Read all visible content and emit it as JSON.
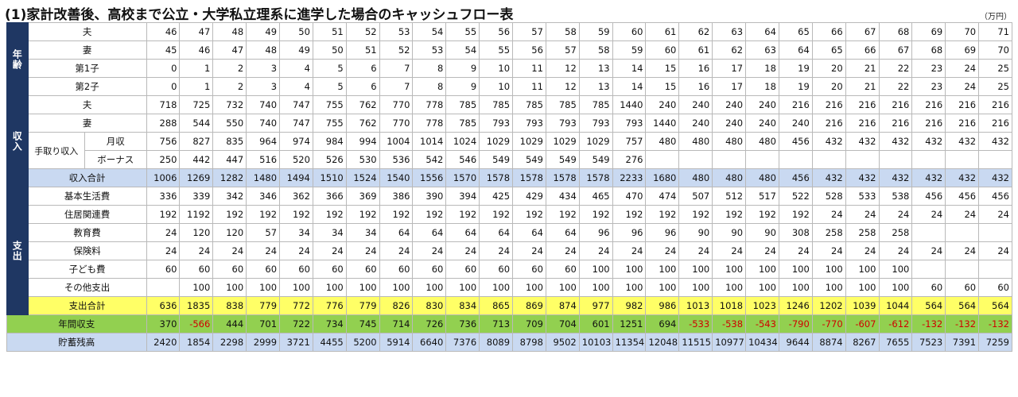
{
  "title": "(1)家計改善後、高校まで公立・大学私立理系に進学した場合のキャッシュフロー表",
  "unit": "（万円）",
  "sections": {
    "age": "年齢",
    "income": "収入",
    "expense": "支出"
  },
  "labels": {
    "takehome": "手取り収入",
    "monthly": "月収",
    "bonus": "ボーナス"
  },
  "rows": [
    {
      "key": "age_husband",
      "label": "夫",
      "values": [
        "46",
        "47",
        "48",
        "49",
        "50",
        "51",
        "52",
        "53",
        "54",
        "55",
        "56",
        "57",
        "58",
        "59",
        "60",
        "61",
        "62",
        "63",
        "64",
        "65",
        "66",
        "67",
        "68",
        "69",
        "70",
        "71"
      ]
    },
    {
      "key": "age_wife",
      "label": "妻",
      "values": [
        "45",
        "46",
        "47",
        "48",
        "49",
        "50",
        "51",
        "52",
        "53",
        "54",
        "55",
        "56",
        "57",
        "58",
        "59",
        "60",
        "61",
        "62",
        "63",
        "64",
        "65",
        "66",
        "67",
        "68",
        "69",
        "70"
      ]
    },
    {
      "key": "age_child1",
      "label": "第1子",
      "values": [
        "0",
        "1",
        "2",
        "3",
        "4",
        "5",
        "6",
        "7",
        "8",
        "9",
        "10",
        "11",
        "12",
        "13",
        "14",
        "15",
        "16",
        "17",
        "18",
        "19",
        "20",
        "21",
        "22",
        "23",
        "24",
        "25"
      ]
    },
    {
      "key": "age_child2",
      "label": "第2子",
      "values": [
        "0",
        "1",
        "2",
        "3",
        "4",
        "5",
        "6",
        "7",
        "8",
        "9",
        "10",
        "11",
        "12",
        "13",
        "14",
        "15",
        "16",
        "17",
        "18",
        "19",
        "20",
        "21",
        "22",
        "23",
        "24",
        "25"
      ]
    },
    {
      "key": "inc_husband",
      "label": "夫",
      "values": [
        "718",
        "725",
        "732",
        "740",
        "747",
        "755",
        "762",
        "770",
        "778",
        "785",
        "785",
        "785",
        "785",
        "785",
        "1440",
        "240",
        "240",
        "240",
        "240",
        "216",
        "216",
        "216",
        "216",
        "216",
        "216",
        "216"
      ]
    },
    {
      "key": "inc_wife",
      "label": "妻",
      "values": [
        "288",
        "544",
        "550",
        "740",
        "747",
        "755",
        "762",
        "770",
        "778",
        "785",
        "793",
        "793",
        "793",
        "793",
        "793",
        "1440",
        "240",
        "240",
        "240",
        "240",
        "216",
        "216",
        "216",
        "216",
        "216",
        "216"
      ]
    },
    {
      "key": "inc_monthly",
      "label": "月収",
      "values": [
        "756",
        "827",
        "835",
        "964",
        "974",
        "984",
        "994",
        "1004",
        "1014",
        "1024",
        "1029",
        "1029",
        "1029",
        "1029",
        "757",
        "480",
        "480",
        "480",
        "480",
        "456",
        "432",
        "432",
        "432",
        "432",
        "432",
        "432"
      ]
    },
    {
      "key": "inc_bonus",
      "label": "ボーナス",
      "values": [
        "250",
        "442",
        "447",
        "516",
        "520",
        "526",
        "530",
        "536",
        "542",
        "546",
        "549",
        "549",
        "549",
        "549",
        "276",
        "",
        "",
        "",
        "",
        "",
        "",
        "",
        "",
        "",
        "",
        ""
      ]
    },
    {
      "key": "inc_total",
      "label": "収入合計",
      "values": [
        "1006",
        "1269",
        "1282",
        "1480",
        "1494",
        "1510",
        "1524",
        "1540",
        "1556",
        "1570",
        "1578",
        "1578",
        "1578",
        "1578",
        "2233",
        "1680",
        "480",
        "480",
        "480",
        "456",
        "432",
        "432",
        "432",
        "432",
        "432",
        "432"
      ]
    },
    {
      "key": "exp_basic",
      "label": "基本生活費",
      "values": [
        "336",
        "339",
        "342",
        "346",
        "362",
        "366",
        "369",
        "386",
        "390",
        "394",
        "425",
        "429",
        "434",
        "465",
        "470",
        "474",
        "507",
        "512",
        "517",
        "522",
        "528",
        "533",
        "538",
        "456",
        "456",
        "456"
      ]
    },
    {
      "key": "exp_housing",
      "label": "住居関連費",
      "values": [
        "192",
        "1192",
        "192",
        "192",
        "192",
        "192",
        "192",
        "192",
        "192",
        "192",
        "192",
        "192",
        "192",
        "192",
        "192",
        "192",
        "192",
        "192",
        "192",
        "192",
        "24",
        "24",
        "24",
        "24",
        "24",
        "24"
      ]
    },
    {
      "key": "exp_education",
      "label": "教育費",
      "values": [
        "24",
        "120",
        "120",
        "57",
        "34",
        "34",
        "34",
        "64",
        "64",
        "64",
        "64",
        "64",
        "64",
        "96",
        "96",
        "96",
        "90",
        "90",
        "90",
        "308",
        "258",
        "258",
        "258",
        "",
        "",
        ""
      ]
    },
    {
      "key": "exp_insurance",
      "label": "保険料",
      "values": [
        "24",
        "24",
        "24",
        "24",
        "24",
        "24",
        "24",
        "24",
        "24",
        "24",
        "24",
        "24",
        "24",
        "24",
        "24",
        "24",
        "24",
        "24",
        "24",
        "24",
        "24",
        "24",
        "24",
        "24",
        "24",
        "24"
      ]
    },
    {
      "key": "exp_child",
      "label": "子ども費",
      "values": [
        "60",
        "60",
        "60",
        "60",
        "60",
        "60",
        "60",
        "60",
        "60",
        "60",
        "60",
        "60",
        "60",
        "100",
        "100",
        "100",
        "100",
        "100",
        "100",
        "100",
        "100",
        "100",
        "100",
        "",
        "",
        ""
      ]
    },
    {
      "key": "exp_other",
      "label": "その他支出",
      "values": [
        "",
        "100",
        "100",
        "100",
        "100",
        "100",
        "100",
        "100",
        "100",
        "100",
        "100",
        "100",
        "100",
        "100",
        "100",
        "100",
        "100",
        "100",
        "100",
        "100",
        "100",
        "100",
        "100",
        "60",
        "60",
        "60"
      ]
    },
    {
      "key": "exp_total",
      "label": "支出合計",
      "values": [
        "636",
        "1835",
        "838",
        "779",
        "772",
        "776",
        "779",
        "826",
        "830",
        "834",
        "865",
        "869",
        "874",
        "977",
        "982",
        "986",
        "1013",
        "1018",
        "1023",
        "1246",
        "1202",
        "1039",
        "1044",
        "564",
        "564",
        "564"
      ]
    },
    {
      "key": "annual",
      "label": "年間収支",
      "values": [
        "370",
        "-566",
        "444",
        "701",
        "722",
        "734",
        "745",
        "714",
        "726",
        "736",
        "713",
        "709",
        "704",
        "601",
        "1251",
        "694",
        "-533",
        "-538",
        "-543",
        "-790",
        "-770",
        "-607",
        "-612",
        "-132",
        "-132",
        "-132"
      ]
    },
    {
      "key": "savings",
      "label": "貯蓄残高",
      "values": [
        "2420",
        "1854",
        "2298",
        "2999",
        "3721",
        "4455",
        "5200",
        "5914",
        "6640",
        "7376",
        "8089",
        "8798",
        "9502",
        "10103",
        "11354",
        "12048",
        "11515",
        "10977",
        "10434",
        "9644",
        "8874",
        "8267",
        "7655",
        "7523",
        "7391",
        "7259"
      ]
    }
  ]
}
